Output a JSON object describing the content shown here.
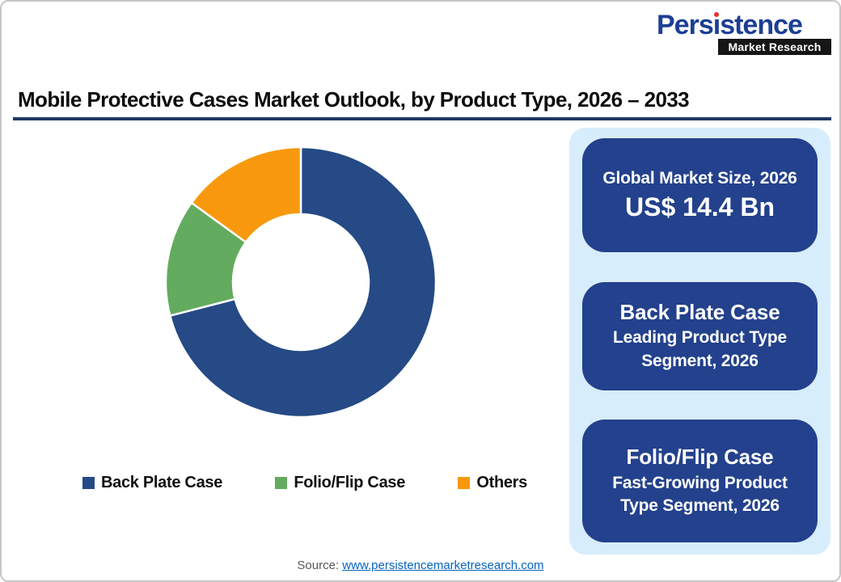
{
  "page": {
    "title": "Mobile Protective Cases Market Outlook, by Product Type, 2026 – 2033",
    "source_label": "Source:",
    "source_link_text": "www.persistencemarketresearch.com"
  },
  "logo": {
    "brand_full": "Persistence",
    "brand_pre": "Pers",
    "brand_i": "ı",
    "brand_post": "stence",
    "tagline": "Market Research"
  },
  "chart_data": {
    "type": "pie",
    "subtype": "donut",
    "title": "Mobile Protective Cases Market Outlook, by Product Type, 2026 – 2033",
    "categories": [
      "Back Plate Case",
      "Folio/Flip Case",
      "Others"
    ],
    "values": [
      71,
      14,
      15
    ],
    "values_unit": "percent share, estimated from arc angles",
    "data_labels_shown": false,
    "colors": [
      "#254a85",
      "#63ab5f",
      "#f8990d"
    ],
    "start_angle_deg": 0,
    "direction": "clockwise",
    "hole_ratio": 0.5,
    "legend_position": "bottom"
  },
  "sidebar": {
    "cards": [
      {
        "heading": "Global Market Size, 2026",
        "value": "US$ 14.4 Bn"
      },
      {
        "heading": "Back Plate Case",
        "subtext": "Leading Product Type Segment, 2026"
      },
      {
        "heading": "Folio/Flip Case",
        "subtext": "Fast-Growing Product Type Segment, 2026"
      }
    ]
  },
  "colors": {
    "accent_rule": "#1f3864",
    "panel_bg": "#d7edfb",
    "card_bg": "#23418c",
    "logo_blue": "#1c3f94",
    "logo_red": "#e4322b",
    "logo_bar_bg": "#161616",
    "title_text": "#0d0d0d",
    "source_gray": "#595959",
    "link_blue": "#0563c1"
  }
}
